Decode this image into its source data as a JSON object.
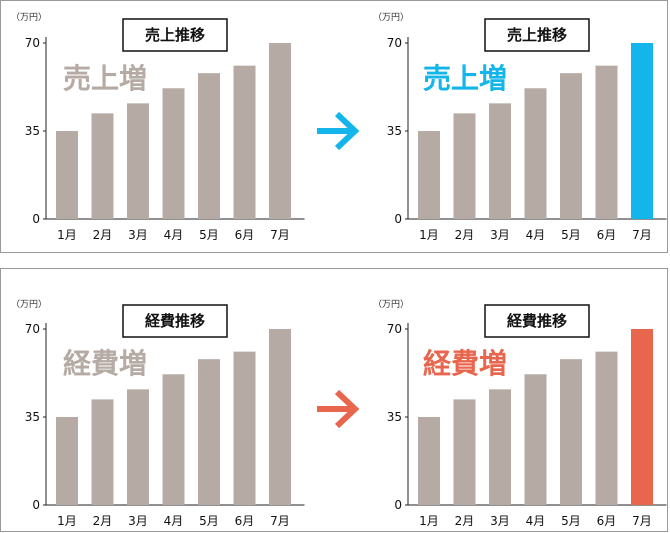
{
  "colors": {
    "bar": "#b5aba4",
    "grey_text": "#b5aba4",
    "sales_accent": "#13b5ea",
    "cost_accent": "#e8664d",
    "axis": "#222222"
  },
  "chart_data": [
    {
      "type": "bar",
      "panel": "sales",
      "position": "left",
      "title": "売上推移",
      "overlay_text": "売上増",
      "unit": "（万円）",
      "categories": [
        "1月",
        "2月",
        "3月",
        "4月",
        "5月",
        "6月",
        "7月"
      ],
      "values": [
        35,
        42,
        46,
        52,
        58,
        61,
        70
      ],
      "yticks": [
        "0",
        "35",
        "70"
      ],
      "ylim": [
        0,
        70
      ],
      "highlight_index": -1
    },
    {
      "type": "bar",
      "panel": "sales",
      "position": "right",
      "title": "売上推移",
      "overlay_text": "売上増",
      "unit": "（万円）",
      "categories": [
        "1月",
        "2月",
        "3月",
        "4月",
        "5月",
        "6月",
        "7月"
      ],
      "values": [
        35,
        42,
        46,
        52,
        58,
        61,
        70
      ],
      "yticks": [
        "0",
        "35",
        "70"
      ],
      "ylim": [
        0,
        70
      ],
      "highlight_index": 6
    },
    {
      "type": "bar",
      "panel": "cost",
      "position": "left",
      "title": "経費推移",
      "overlay_text": "経費増",
      "unit": "（万円）",
      "categories": [
        "1月",
        "2月",
        "3月",
        "4月",
        "5月",
        "6月",
        "7月"
      ],
      "values": [
        35,
        42,
        46,
        52,
        58,
        61,
        70
      ],
      "yticks": [
        "0",
        "35",
        "70"
      ],
      "ylim": [
        0,
        70
      ],
      "highlight_index": -1
    },
    {
      "type": "bar",
      "panel": "cost",
      "position": "right",
      "title": "経費推移",
      "overlay_text": "経費増",
      "unit": "（万円）",
      "categories": [
        "1月",
        "2月",
        "3月",
        "4月",
        "5月",
        "6月",
        "7月"
      ],
      "values": [
        35,
        42,
        46,
        52,
        58,
        61,
        70
      ],
      "yticks": [
        "0",
        "35",
        "70"
      ],
      "ylim": [
        0,
        70
      ],
      "highlight_index": 6
    }
  ]
}
